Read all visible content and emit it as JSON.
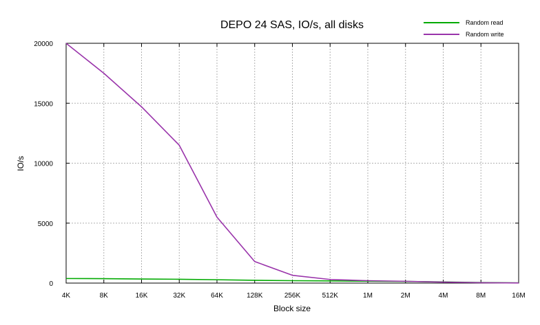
{
  "chart_data": {
    "type": "line",
    "title": "DEPO 24 SAS, IO/s, all disks",
    "xlabel": "Block size",
    "ylabel": "IO/s",
    "x_scale": "log2",
    "ylim": [
      0,
      20000
    ],
    "grid": true,
    "legend_position": "top-right",
    "x_ticks": [
      "4K",
      "8K",
      "16K",
      "32K",
      "64K",
      "128K",
      "256K",
      "512K",
      "1M",
      "2M",
      "4M",
      "8M",
      "16M"
    ],
    "y_ticks": [
      "0",
      "5000",
      "10000",
      "15000",
      "20000"
    ],
    "y_tick_values": [
      0,
      5000,
      10000,
      15000,
      20000
    ],
    "series": [
      {
        "name": "Random read",
        "color": "#00aa00",
        "x": [
          "4K",
          "8K",
          "16K",
          "32K",
          "64K",
          "128K",
          "256K",
          "512K",
          "1M",
          "2M",
          "4M",
          "8M",
          "16M"
        ],
        "values": [
          380,
          370,
          340,
          320,
          280,
          230,
          200,
          180,
          160,
          140,
          100,
          50,
          20
        ]
      },
      {
        "name": "Random write",
        "color": "#9933aa",
        "x": [
          "4K",
          "8K",
          "16K",
          "32K",
          "64K",
          "128K",
          "256K",
          "512K",
          "1M",
          "2M",
          "4M",
          "8M",
          "16M"
        ],
        "values": [
          20000,
          17500,
          14700,
          11500,
          5500,
          1800,
          650,
          300,
          200,
          150,
          80,
          30,
          10
        ]
      }
    ]
  }
}
